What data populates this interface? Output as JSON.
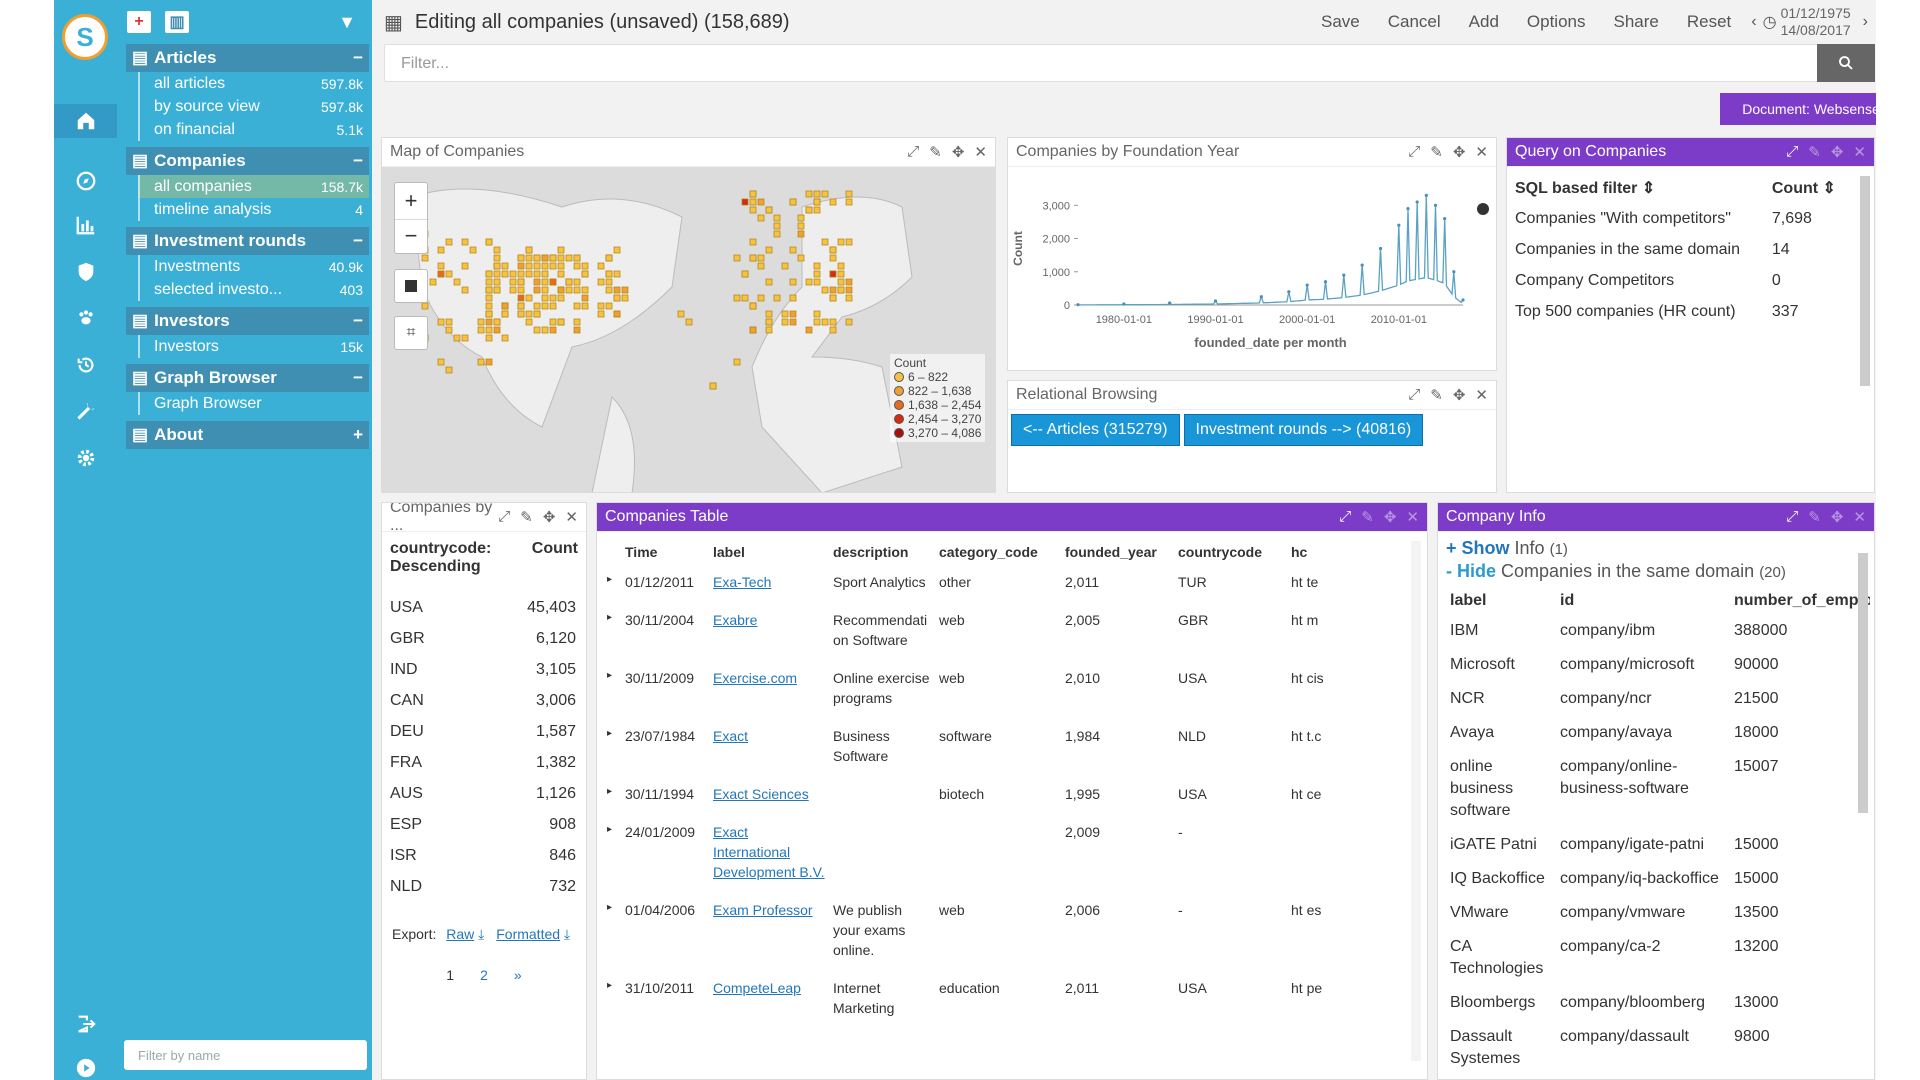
{
  "window": {
    "title": "Editing all companies (unsaved) (158,689)",
    "actions": [
      "Save",
      "Cancel",
      "Add",
      "Options",
      "Share",
      "Reset"
    ],
    "date_from": "01/12/1975",
    "date_to": "14/08/2017"
  },
  "filter": {
    "placeholder": "Filter..."
  },
  "document_badge": "Document: Websense",
  "sidebar": {
    "filter_placeholder": "Filter by name",
    "sections": [
      {
        "label": "Articles",
        "toggle": "−",
        "items": [
          {
            "label": "all articles",
            "count": "597.8k"
          },
          {
            "label": "by source view",
            "count": "597.8k"
          },
          {
            "label": "on financial",
            "count": "5.1k"
          }
        ]
      },
      {
        "label": "Companies",
        "toggle": "−",
        "items": [
          {
            "label": "all companies",
            "count": "158.7k"
          },
          {
            "label": "timeline analysis",
            "count": "4"
          }
        ]
      },
      {
        "label": "Investment rounds",
        "toggle": "−",
        "items": [
          {
            "label": "Investments",
            "count": "40.9k"
          },
          {
            "label": "selected investo...",
            "count": "403"
          }
        ]
      },
      {
        "label": "Investors",
        "toggle": "−",
        "items": [
          {
            "label": "Investors",
            "count": "15k"
          }
        ]
      },
      {
        "label": "Graph Browser",
        "toggle": "−",
        "items": [
          {
            "label": "Graph Browser",
            "count": ""
          }
        ]
      },
      {
        "label": "About",
        "toggle": "+",
        "items": []
      }
    ]
  },
  "map_panel": {
    "title": "Map of Companies",
    "legend_title": "Count",
    "legend": [
      {
        "label": "6 – 822",
        "color": "#f5c242"
      },
      {
        "label": "822 – 1,638",
        "color": "#f0a030"
      },
      {
        "label": "1,638 – 2,454",
        "color": "#e86a1c"
      },
      {
        "label": "2,454 – 3,270",
        "color": "#d62a12"
      },
      {
        "label": "3,270 – 4,086",
        "color": "#a8100c"
      }
    ]
  },
  "chart_panel": {
    "title": "Companies by Foundation Year"
  },
  "chart_data": {
    "type": "line",
    "title": "",
    "xlabel": "founded_date per month",
    "ylabel": "Count",
    "x": [
      "1975-01",
      "1980-01",
      "1985-01",
      "1990-01",
      "1995-01",
      "1998-01",
      "2000-01",
      "2002-01",
      "2004-01",
      "2006-01",
      "2008-01",
      "2010-01",
      "2011-01",
      "2012-01",
      "2013-01",
      "2014-01",
      "2015-01",
      "2016-01",
      "2017-01"
    ],
    "values": [
      10,
      30,
      60,
      120,
      250,
      400,
      600,
      700,
      900,
      1200,
      1700,
      2400,
      2900,
      3100,
      3300,
      3000,
      2600,
      1000,
      150
    ],
    "xticks": [
      "1980-01-01",
      "1990-01-01",
      "2000-01-01",
      "2010-01-01"
    ],
    "yticks": [
      "0",
      "1,000",
      "2,000",
      "3,000"
    ],
    "ylim": [
      0,
      3400
    ]
  },
  "relational": {
    "title": "Relational Browsing",
    "buttons": [
      "<-- Articles (315279)",
      "Investment rounds --> (40816)"
    ]
  },
  "query": {
    "title": "Query on Companies",
    "col_filter": "SQL based filter",
    "col_count": "Count",
    "rows": [
      {
        "label": "Companies \"With competitors\"",
        "count": "7,698"
      },
      {
        "label": "Companies in the same domain",
        "count": "14"
      },
      {
        "label": "Company Competitors",
        "count": "0"
      },
      {
        "label": "Top 500 companies (HR count)",
        "count": "337"
      }
    ]
  },
  "country": {
    "title": "Companies by ...",
    "col_label": "countrycode: Descending",
    "col_count": "Count",
    "rows": [
      {
        "code": "USA",
        "count": "45,403"
      },
      {
        "code": "GBR",
        "count": "6,120"
      },
      {
        "code": "IND",
        "count": "3,105"
      },
      {
        "code": "CAN",
        "count": "3,006"
      },
      {
        "code": "DEU",
        "count": "1,587"
      },
      {
        "code": "FRA",
        "count": "1,382"
      },
      {
        "code": "AUS",
        "count": "1,126"
      },
      {
        "code": "ESP",
        "count": "908"
      },
      {
        "code": "ISR",
        "count": "846"
      },
      {
        "code": "NLD",
        "count": "732"
      }
    ],
    "export_label": "Export:",
    "raw": "Raw",
    "formatted": "Formatted",
    "pages": [
      "1",
      "2",
      "»"
    ]
  },
  "companies_table": {
    "title": "Companies Table",
    "columns": [
      "Time",
      "label",
      "description",
      "category_code",
      "founded_year",
      "countrycode",
      "hc"
    ],
    "rows": [
      {
        "time": "01/12/2011",
        "label": "Exa-Tech",
        "desc": "Sport Analytics",
        "cat": "other",
        "year": "2,011",
        "cc": "TUR",
        "hc": "ht te"
      },
      {
        "time": "30/11/2004",
        "label": "Exabre",
        "desc": "Recommendation Software",
        "cat": "web",
        "year": "2,005",
        "cc": "GBR",
        "hc": "ht m"
      },
      {
        "time": "30/11/2009",
        "label": "Exercise.com",
        "desc": "Online exercise programs",
        "cat": "web",
        "year": "2,010",
        "cc": "USA",
        "hc": "ht cis"
      },
      {
        "time": "23/07/1984",
        "label": "Exact",
        "desc": "Business Software",
        "cat": "software",
        "year": "1,984",
        "cc": "NLD",
        "hc": "ht t.c"
      },
      {
        "time": "30/11/1994",
        "label": "Exact Sciences",
        "desc": "",
        "cat": "biotech",
        "year": "1,995",
        "cc": "USA",
        "hc": "ht ce"
      },
      {
        "time": "24/01/2009",
        "label": "Exact International Development B.V.",
        "desc": "",
        "cat": "",
        "year": "2,009",
        "cc": "-",
        "hc": ""
      },
      {
        "time": "01/04/2006",
        "label": "Exam Professor",
        "desc": "We publish your exams online.",
        "cat": "web",
        "year": "2,006",
        "cc": "-",
        "hc": "ht es"
      },
      {
        "time": "31/10/2011",
        "label": "CompeteLeap",
        "desc": "Internet Marketing",
        "cat": "education",
        "year": "2,011",
        "cc": "USA",
        "hc": "ht pe"
      }
    ]
  },
  "company_info": {
    "title": "Company Info",
    "show_label": "+ Show",
    "show_text": "Info",
    "show_count": "(1)",
    "hide_label": "- Hide",
    "hide_text": "Companies in the same domain",
    "hide_count": "(20)",
    "columns": [
      "label",
      "id",
      "number_of_employe"
    ],
    "rows": [
      {
        "label": "IBM",
        "id": "company/ibm",
        "n": "388000"
      },
      {
        "label": "Microsoft",
        "id": "company/microsoft",
        "n": "90000"
      },
      {
        "label": "NCR",
        "id": "company/ncr",
        "n": "21500"
      },
      {
        "label": "Avaya",
        "id": "company/avaya",
        "n": "18000"
      },
      {
        "label": "online business software",
        "id": "company/online-business-software",
        "n": "15007"
      },
      {
        "label": "iGATE Patni",
        "id": "company/igate-patni",
        "n": "15000"
      },
      {
        "label": "IQ Backoffice",
        "id": "company/iq-backoffice",
        "n": "15000"
      },
      {
        "label": "VMware",
        "id": "company/vmware",
        "n": "13500"
      },
      {
        "label": "CA Technologies",
        "id": "company/ca-2",
        "n": "13200"
      },
      {
        "label": "Bloombergs",
        "id": "company/bloomberg",
        "n": "13000"
      },
      {
        "label": "Dassault Systemes",
        "id": "company/dassault",
        "n": "9800"
      }
    ]
  },
  "colors": {
    "accent": "#3bb0d6",
    "purple": "#7d3cc8",
    "button": "#1896d8",
    "sidebar_section": "#3e8fb2",
    "selected": "#74b9a8"
  }
}
